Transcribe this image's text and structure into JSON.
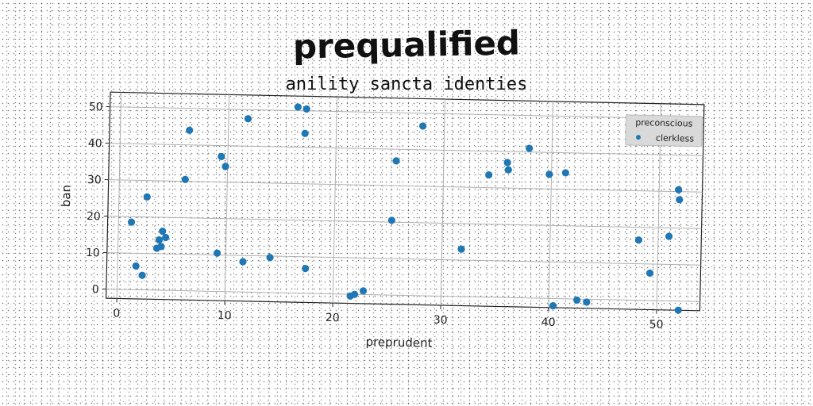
{
  "chart_data": {
    "type": "scatter",
    "title": "prequalified",
    "subtitle": "anility sancta identies",
    "xlabel": "preprudent",
    "ylabel": "ban",
    "xlim": [
      -1,
      54
    ],
    "ylim": [
      -2.5,
      54
    ],
    "xticks": [
      0,
      10,
      20,
      30,
      40,
      50
    ],
    "yticks": [
      0,
      10,
      20,
      30,
      40,
      50
    ],
    "grid": true,
    "legend": {
      "title": "preconscious",
      "position": "top-right"
    },
    "series": [
      {
        "name": "clerkless",
        "color": "#1f77b4",
        "points": [
          [
            1.2,
            18.5
          ],
          [
            1.7,
            6.5
          ],
          [
            2.3,
            4
          ],
          [
            2.6,
            25.5
          ],
          [
            3.6,
            11.5
          ],
          [
            3.8,
            13.8
          ],
          [
            4.0,
            12
          ],
          [
            4.1,
            16.2
          ],
          [
            4.4,
            14.5
          ],
          [
            6.1,
            30.5
          ],
          [
            6.4,
            44
          ],
          [
            9.2,
            10.5
          ],
          [
            9.4,
            37
          ],
          [
            9.8,
            34.3
          ],
          [
            11.6,
            8.3
          ],
          [
            11.8,
            47.5
          ],
          [
            14.1,
            9.6
          ],
          [
            16.4,
            51
          ],
          [
            17.1,
            43.8
          ],
          [
            17.2,
            50.5
          ],
          [
            17.4,
            6.8
          ],
          [
            21.6,
            -0.5
          ],
          [
            22.0,
            0
          ],
          [
            22.8,
            1
          ],
          [
            25.3,
            20.5
          ],
          [
            25.6,
            36.8
          ],
          [
            28.0,
            46.5
          ],
          [
            31.8,
            13
          ],
          [
            34.2,
            33.5
          ],
          [
            35.9,
            37
          ],
          [
            36.0,
            35
          ],
          [
            37.9,
            41
          ],
          [
            39.8,
            34
          ],
          [
            40.4,
            -2
          ],
          [
            41.3,
            34.5
          ],
          [
            42.6,
            -0.3
          ],
          [
            43.5,
            -0.8
          ],
          [
            48.2,
            16.5
          ],
          [
            49.3,
            7.5
          ],
          [
            50.6,
            46
          ],
          [
            51.0,
            17.7
          ],
          [
            51.8,
            30.5
          ],
          [
            51.9,
            27.8
          ],
          [
            52.0,
            -2.5
          ]
        ]
      }
    ]
  }
}
